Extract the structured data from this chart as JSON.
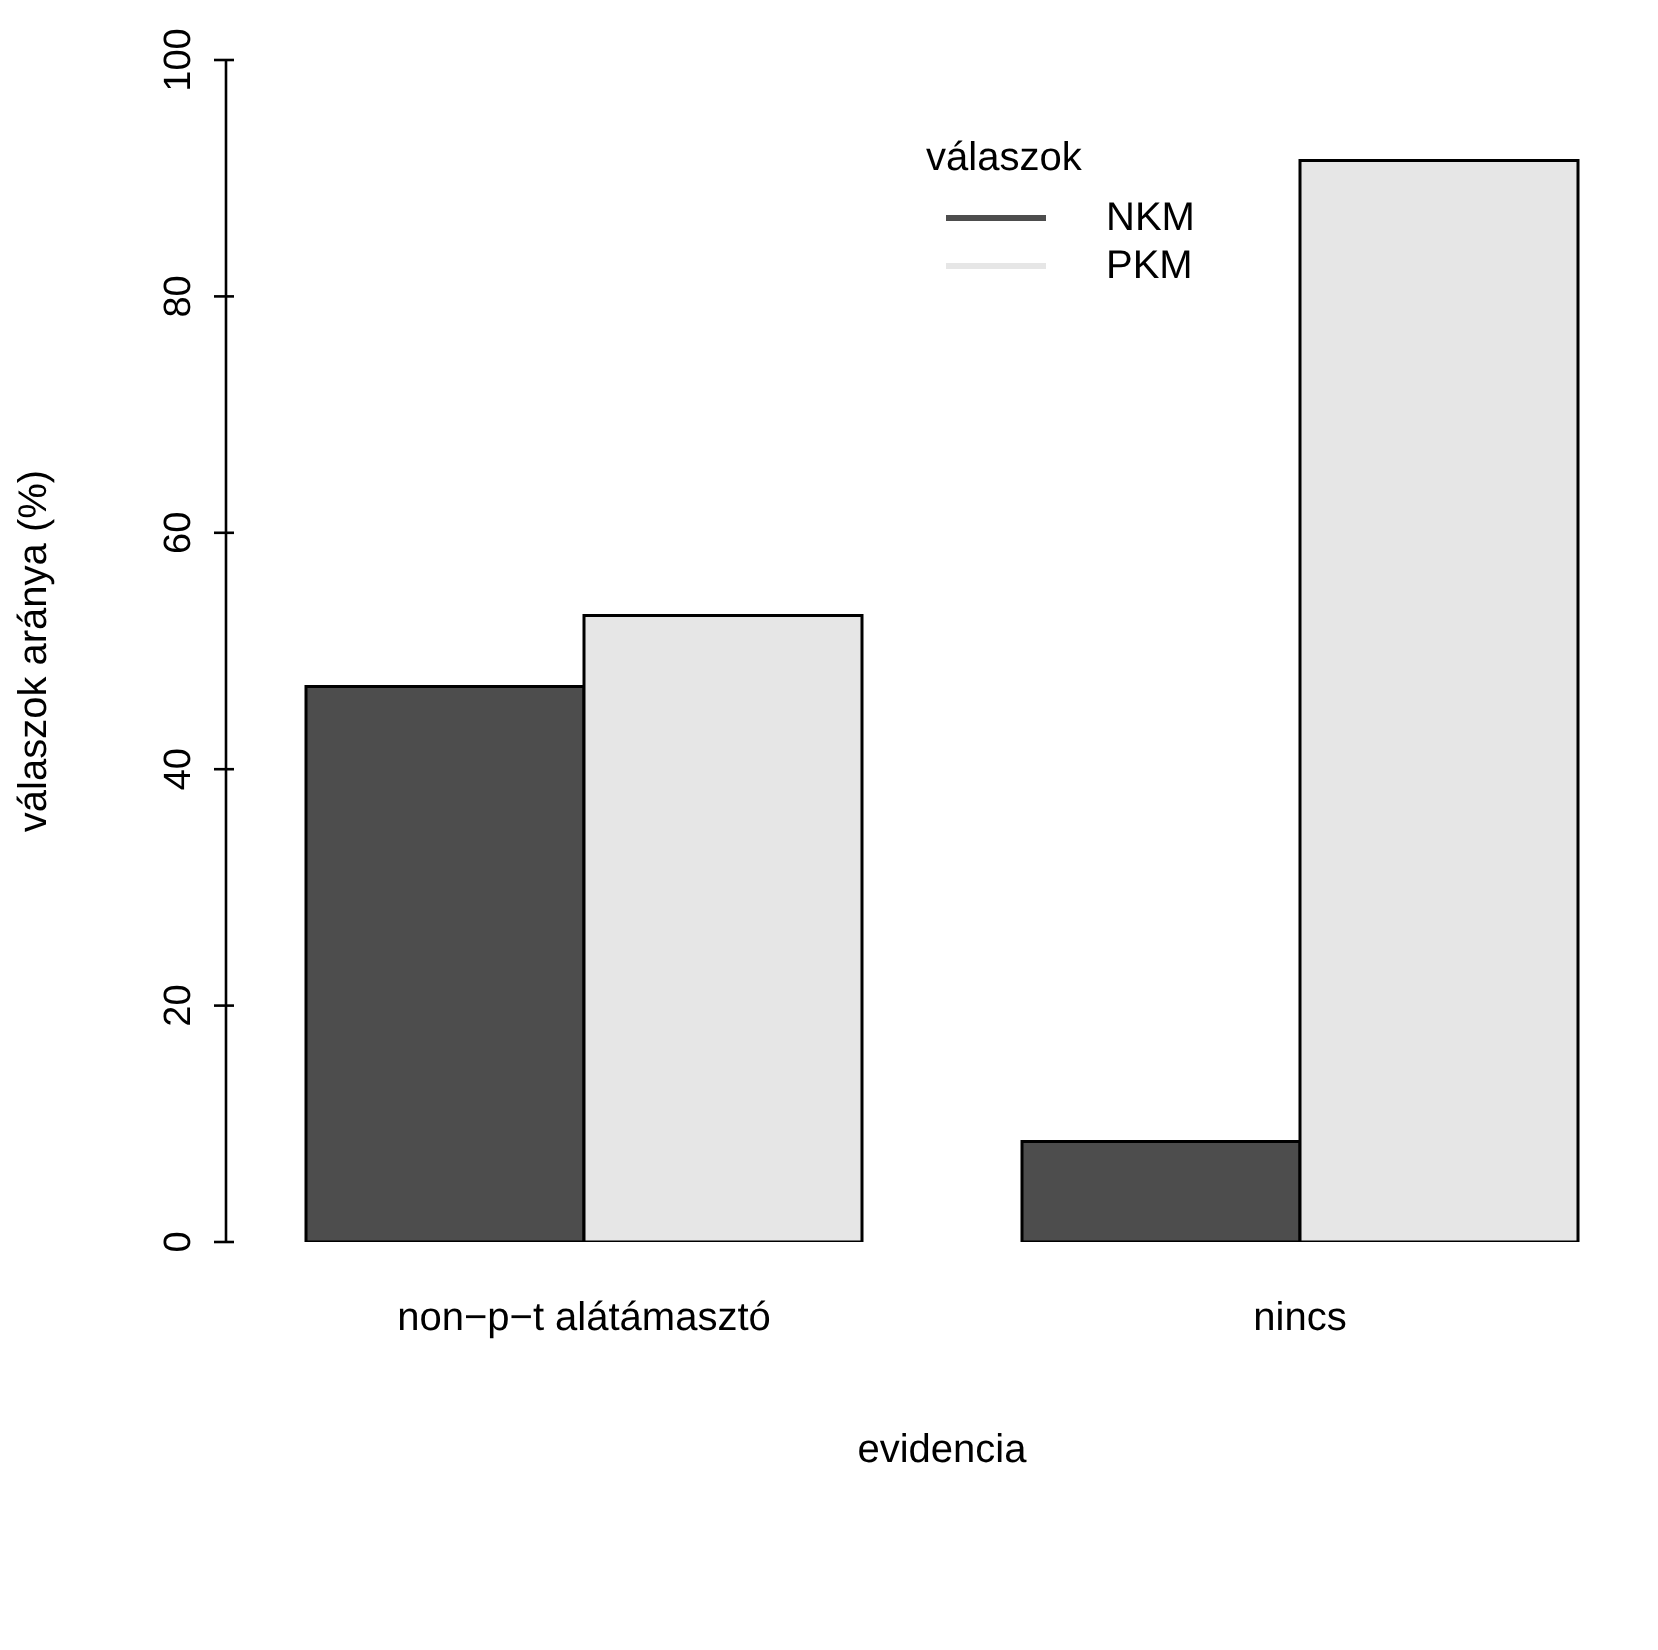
{
  "chart_data": {
    "type": "bar",
    "xlabel": "evidencia",
    "ylabel": "válaszok aránya (%)",
    "legend_title": "válaszok",
    "categories": [
      "non−p−t alátámasztó",
      "nincs"
    ],
    "series": [
      {
        "name": "NKM",
        "color": "#4d4d4d",
        "values": [
          47,
          8.5
        ]
      },
      {
        "name": "PKM",
        "color": "#e6e6e6",
        "values": [
          53,
          91.5
        ]
      }
    ],
    "ylim": [
      0,
      100
    ],
    "yticks": [
      0,
      20,
      40,
      60,
      80,
      100
    ],
    "legend": "top right"
  }
}
